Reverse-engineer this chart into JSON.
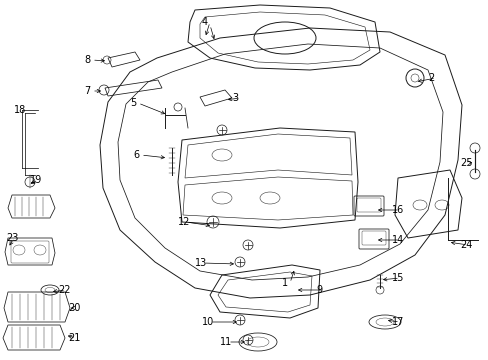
{
  "background_color": "#ffffff",
  "line_color": "#1a1a1a",
  "text_color": "#000000",
  "fig_width": 4.89,
  "fig_height": 3.6,
  "dpi": 100,
  "label_fontsize": 7.0,
  "arrow_fontsize": 6.0
}
